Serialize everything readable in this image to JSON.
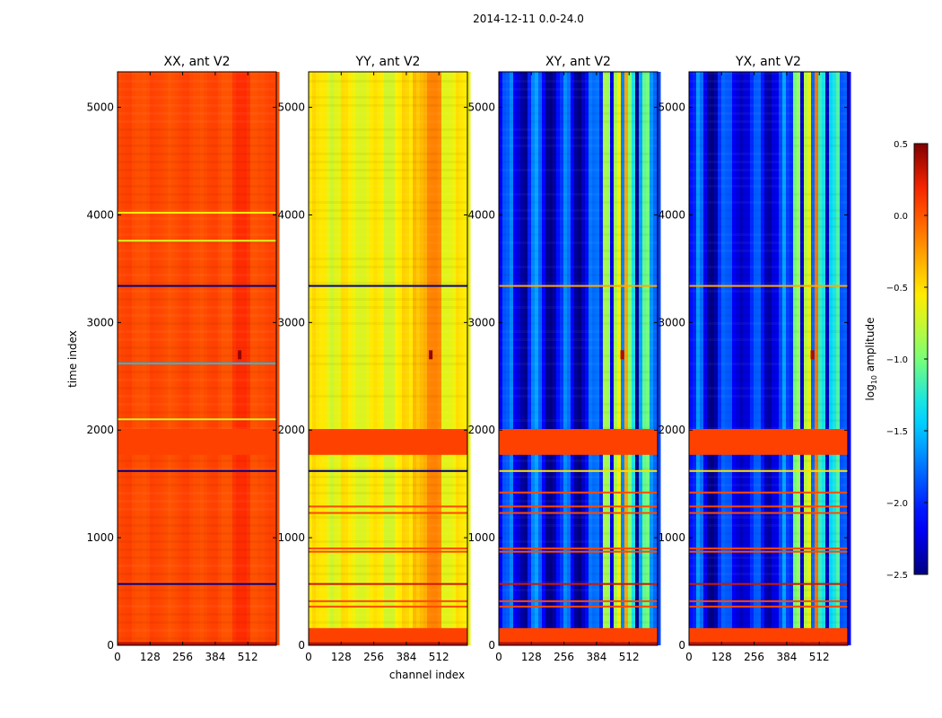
{
  "chart_data": {
    "type": "heatmap",
    "suptitle": "2014-12-11 0.0-24.0",
    "xlabel": "channel index",
    "ylabel": "time index",
    "xlim": [
      0,
      624
    ],
    "ylim": [
      0,
      5330
    ],
    "xticks": [
      0,
      128,
      256,
      384,
      512
    ],
    "yticks": [
      0,
      1000,
      2000,
      3000,
      4000,
      5000
    ],
    "colorbar": {
      "label": "log10 amplitude",
      "label_main": "log",
      "label_sub": "10",
      "label_tail": " amplitude",
      "range": [
        -2.5,
        0.5
      ],
      "ticks": [
        0.5,
        0.0,
        -0.5,
        -1.0,
        -1.5,
        -2.0,
        -2.5
      ],
      "tick_labels": [
        "0.5",
        "0.0",
        "−0.5",
        "−1.0",
        "−1.5",
        "−2.0",
        "−2.5"
      ],
      "colormap": "jet"
    },
    "panels": [
      {
        "title": "XX, ant V2",
        "base_level": 0.05,
        "ripple": 0.03,
        "channel_features": [
          {
            "from": 450,
            "to": 520,
            "delta": 0.08
          }
        ],
        "flag_bands": [
          {
            "from": 0,
            "to": 30,
            "level": 0.35
          },
          {
            "from": 1770,
            "to": 2010,
            "level": 0.08
          }
        ],
        "lines": [
          {
            "t": 570,
            "level": -2.5
          },
          {
            "t": 1620,
            "level": -2.5
          },
          {
            "t": 2100,
            "level": -0.7
          },
          {
            "t": 2620,
            "level": -1.5
          },
          {
            "t": 3340,
            "level": -2.5
          },
          {
            "t": 3760,
            "level": -0.7
          },
          {
            "t": 4020,
            "level": -0.6
          }
        ],
        "spots": [
          {
            "channel": 480,
            "time": 2700,
            "level": 0.45
          }
        ]
      },
      {
        "title": "YY, ant V2",
        "base_level": -0.6,
        "ripple": 0.12,
        "channel_features": [
          {
            "from": 400,
            "to": 520,
            "delta": 0.35
          }
        ],
        "flag_bands": [
          {
            "from": 0,
            "to": 30,
            "level": 0.35
          },
          {
            "from": 30,
            "to": 160,
            "level": 0.08
          },
          {
            "from": 1770,
            "to": 2010,
            "level": 0.08
          }
        ],
        "lines": [
          {
            "t": 360,
            "level": 0.05
          },
          {
            "t": 410,
            "level": 0.05
          },
          {
            "t": 570,
            "level": 0.3
          },
          {
            "t": 870,
            "level": 0.05
          },
          {
            "t": 900,
            "level": 0.05
          },
          {
            "t": 1230,
            "level": 0.05
          },
          {
            "t": 1290,
            "level": 0.05
          },
          {
            "t": 1620,
            "level": -2.5
          },
          {
            "t": 3340,
            "level": -2.5
          }
        ],
        "spots": [
          {
            "channel": 480,
            "time": 2700,
            "level": 0.45
          }
        ]
      },
      {
        "title": "XY, ant V2",
        "base_level": -2.1,
        "ripple": 0.35,
        "channel_features": [
          {
            "from": 400,
            "to": 430,
            "delta": 1.4
          },
          {
            "from": 440,
            "to": 470,
            "delta": 1.3
          },
          {
            "from": 480,
            "to": 500,
            "delta": 1.6
          },
          {
            "from": 500,
            "to": 530,
            "delta": 1.0
          },
          {
            "from": 540,
            "to": 580,
            "delta": 0.9
          }
        ],
        "flag_bands": [
          {
            "from": 0,
            "to": 30,
            "level": 0.35
          },
          {
            "from": 30,
            "to": 160,
            "level": 0.08
          },
          {
            "from": 1770,
            "to": 2010,
            "level": 0.08
          }
        ],
        "lines": [
          {
            "t": 360,
            "level": 0.05
          },
          {
            "t": 410,
            "level": 0.05
          },
          {
            "t": 570,
            "level": 0.3
          },
          {
            "t": 870,
            "level": 0.05
          },
          {
            "t": 900,
            "level": 0.05
          },
          {
            "t": 1230,
            "level": 0.05
          },
          {
            "t": 1290,
            "level": 0.05
          },
          {
            "t": 1420,
            "level": 0.05
          },
          {
            "t": 1620,
            "level": -0.5
          },
          {
            "t": 3340,
            "level": -0.3
          }
        ],
        "spots": [
          {
            "channel": 485,
            "time": 2700,
            "level": 0.4
          }
        ]
      },
      {
        "title": "YX, ant V2",
        "base_level": -2.1,
        "ripple": 0.35,
        "channel_features": [
          {
            "from": 400,
            "to": 430,
            "delta": 1.4
          },
          {
            "from": 440,
            "to": 470,
            "delta": 1.3
          },
          {
            "from": 480,
            "to": 500,
            "delta": 1.6
          },
          {
            "from": 500,
            "to": 530,
            "delta": 1.0
          },
          {
            "from": 540,
            "to": 580,
            "delta": 0.9
          }
        ],
        "flag_bands": [
          {
            "from": 0,
            "to": 30,
            "level": 0.35
          },
          {
            "from": 30,
            "to": 160,
            "level": 0.08
          },
          {
            "from": 1770,
            "to": 2010,
            "level": 0.08
          }
        ],
        "lines": [
          {
            "t": 360,
            "level": 0.05
          },
          {
            "t": 410,
            "level": 0.05
          },
          {
            "t": 570,
            "level": 0.3
          },
          {
            "t": 870,
            "level": 0.05
          },
          {
            "t": 900,
            "level": 0.05
          },
          {
            "t": 1230,
            "level": 0.05
          },
          {
            "t": 1290,
            "level": 0.05
          },
          {
            "t": 1420,
            "level": 0.05
          },
          {
            "t": 1620,
            "level": -0.5
          },
          {
            "t": 3340,
            "level": -0.3
          }
        ],
        "spots": [
          {
            "channel": 485,
            "time": 2700,
            "level": 0.4
          }
        ]
      }
    ]
  }
}
